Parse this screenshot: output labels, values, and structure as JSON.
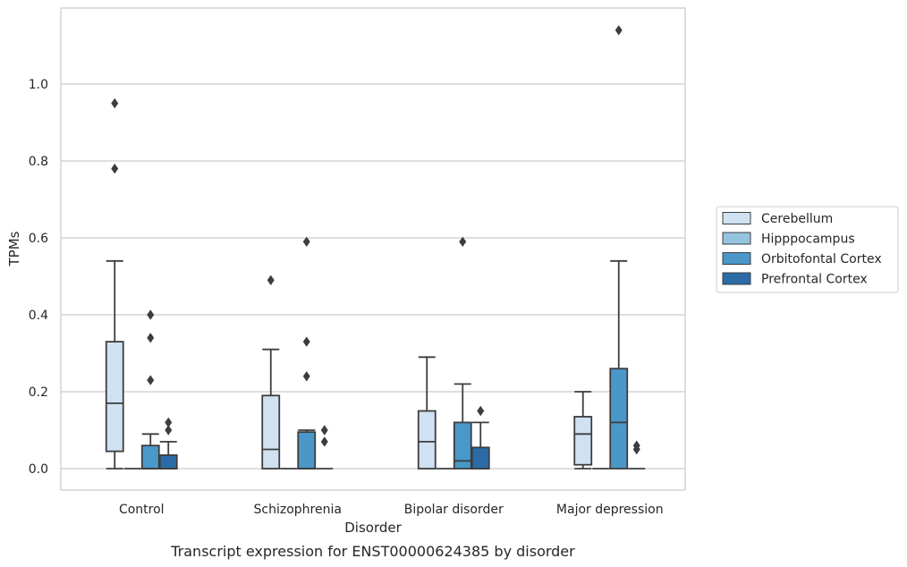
{
  "chart_data": {
    "type": "box",
    "title": "",
    "xlabel": "Disorder",
    "ylabel": "TPMs",
    "caption": "Transcript expression for ENST00000624385 by disorder",
    "ylim": [
      -0.055,
      1.2
    ],
    "yticks": [
      0.0,
      0.2,
      0.4,
      0.6,
      0.8,
      1.0
    ],
    "ytick_labels": [
      "0.0",
      "0.2",
      "0.4",
      "0.6",
      "0.8",
      "1.0"
    ],
    "grid": "horizontal",
    "legend_position": "right",
    "categories": [
      "Control",
      "Schizophrenia",
      "Bipolar disorder",
      "Major depression"
    ],
    "series": [
      {
        "name": "Cerebellum",
        "color": "#d0e1f2",
        "boxes": [
          {
            "whisker_low": 0.0,
            "q1": 0.045,
            "median": 0.17,
            "q3": 0.33,
            "whisker_high": 0.54,
            "outliers": [
              0.78,
              0.95
            ]
          },
          {
            "whisker_low": 0.0,
            "q1": 0.0,
            "median": 0.05,
            "q3": 0.19,
            "whisker_high": 0.31,
            "outliers": [
              0.49
            ]
          },
          {
            "whisker_low": 0.0,
            "q1": 0.0,
            "median": 0.07,
            "q3": 0.15,
            "whisker_high": 0.29,
            "outliers": []
          },
          {
            "whisker_low": 0.0,
            "q1": 0.01,
            "median": 0.09,
            "q3": 0.135,
            "whisker_high": 0.2,
            "outliers": []
          }
        ]
      },
      {
        "name": "Hipppocampus",
        "color": "#94c4df",
        "boxes": [
          {
            "whisker_low": 0.0,
            "q1": 0.0,
            "median": 0.0,
            "q3": 0.0,
            "whisker_high": 0.0,
            "outliers": []
          },
          {
            "whisker_low": 0.0,
            "q1": 0.0,
            "median": 0.0,
            "q3": 0.0,
            "whisker_high": 0.0,
            "outliers": []
          },
          {
            "whisker_low": 0.0,
            "q1": 0.0,
            "median": 0.0,
            "q3": 0.0,
            "whisker_high": 0.0,
            "outliers": []
          },
          {
            "whisker_low": 0.0,
            "q1": 0.0,
            "median": 0.0,
            "q3": 0.0,
            "whisker_high": 0.0,
            "outliers": []
          }
        ]
      },
      {
        "name": "Orbitofontal Cortex",
        "color": "#4a98c9",
        "boxes": [
          {
            "whisker_low": 0.0,
            "q1": 0.0,
            "median": 0.0,
            "q3": 0.06,
            "whisker_high": 0.09,
            "outliers": [
              0.23,
              0.34,
              0.4
            ]
          },
          {
            "whisker_low": 0.0,
            "q1": 0.0,
            "median": 0.0,
            "q3": 0.095,
            "whisker_high": 0.1,
            "outliers": [
              0.24,
              0.33,
              0.59
            ]
          },
          {
            "whisker_low": 0.0,
            "q1": 0.0,
            "median": 0.02,
            "q3": 0.12,
            "whisker_high": 0.22,
            "outliers": [
              0.59
            ]
          },
          {
            "whisker_low": 0.0,
            "q1": 0.0,
            "median": 0.12,
            "q3": 0.26,
            "whisker_high": 0.54,
            "outliers": [
              1.14
            ]
          }
        ]
      },
      {
        "name": "Prefrontal Cortex",
        "color": "#2b6ca8",
        "boxes": [
          {
            "whisker_low": 0.0,
            "q1": 0.0,
            "median": 0.0,
            "q3": 0.035,
            "whisker_high": 0.07,
            "outliers": [
              0.1,
              0.12
            ]
          },
          {
            "whisker_low": 0.0,
            "q1": 0.0,
            "median": 0.0,
            "q3": 0.0,
            "whisker_high": 0.0,
            "outliers": [
              0.07,
              0.1
            ]
          },
          {
            "whisker_low": 0.0,
            "q1": 0.0,
            "median": 0.0,
            "q3": 0.055,
            "whisker_high": 0.12,
            "outliers": [
              0.15
            ]
          },
          {
            "whisker_low": 0.0,
            "q1": 0.0,
            "median": 0.0,
            "q3": 0.0,
            "whisker_high": 0.0,
            "outliers": [
              0.05,
              0.06
            ]
          }
        ]
      }
    ]
  }
}
